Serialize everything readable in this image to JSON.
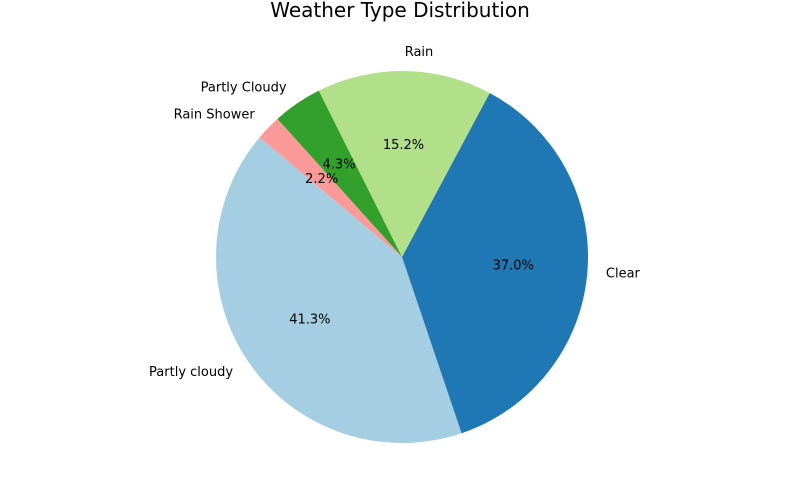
{
  "chart_data": {
    "type": "pie",
    "title": "Weather Type Distribution",
    "start_angle_deg": 140,
    "direction": "counterclockwise",
    "slices": [
      {
        "label": "Partly cloudy",
        "value": 41.3,
        "pct_label": "41.3%",
        "color": "#a6cee3"
      },
      {
        "label": "Clear",
        "value": 37.0,
        "pct_label": "37.0%",
        "color": "#1f78b4"
      },
      {
        "label": "Rain",
        "value": 15.2,
        "pct_label": "15.2%",
        "color": "#b2df8a"
      },
      {
        "label": "Partly Cloudy",
        "value": 4.3,
        "pct_label": "4.3%",
        "color": "#33a02c"
      },
      {
        "label": "Rain Shower",
        "value": 2.2,
        "pct_label": "2.2%",
        "color": "#fb9a99"
      }
    ]
  }
}
